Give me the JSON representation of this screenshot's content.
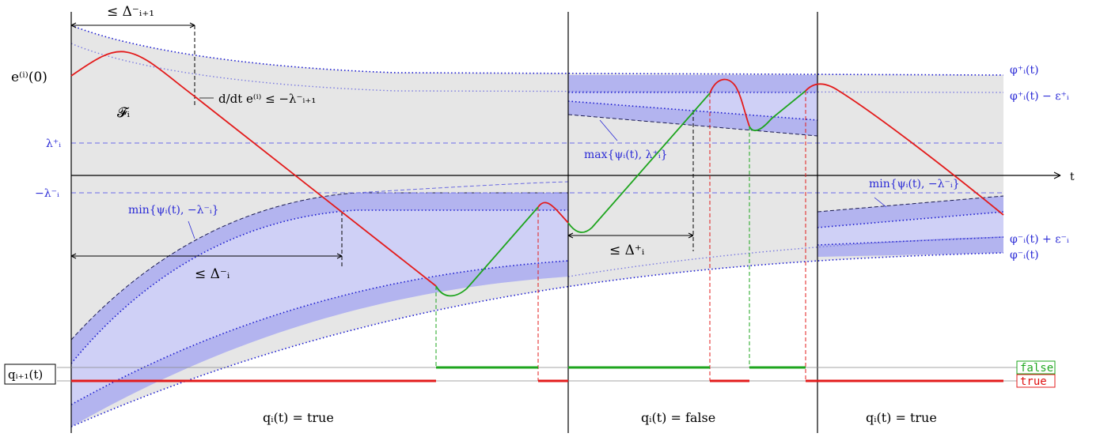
{
  "labels": {
    "delta_i1_minus": "≤ Δ⁻ᵢ₊₁",
    "e_i_0": "e⁽ⁱ⁾(0)",
    "derivative_bound": "d/dt e⁽ⁱ⁾ ≤ −λ⁻ᵢ₊₁",
    "feasible_set": "𝓕ᵢ",
    "lambda_plus": "λ⁺ᵢ",
    "minus_lambda_minus": "−λ⁻ᵢ",
    "min_psi": "min{ψᵢ(t), −λ⁻ᵢ}",
    "delta_i_minus": "≤ Δ⁻ᵢ",
    "max_psi": "max{ψᵢ(t), λ⁺ᵢ}",
    "delta_i_plus": "≤ Δ⁺ᵢ",
    "min_psi_right": "min{ψᵢ(t), −λ⁻ᵢ}",
    "t_axis": "t",
    "phi_plus": "φ⁺ᵢ(t)",
    "phi_plus_minus_eps": "φ⁺ᵢ(t) − ε⁺ᵢ",
    "phi_minus_plus_eps": "φ⁻ᵢ(t) + ε⁻ᵢ",
    "phi_minus": "φ⁻ᵢ(t)",
    "q_i1": "qᵢ₊₁(t)",
    "q_false": "false",
    "q_true": "true",
    "seg1": "qᵢ(t) = true",
    "seg2": "qᵢ(t) = false",
    "seg3": "qᵢ(t) = true"
  },
  "colors": {
    "gray_fill": "#e6e6e6",
    "light_blue": "#cfd0f6",
    "mid_blue": "#b3b4ef",
    "blue_line": "#1a1ad0",
    "red": "#e31b1b",
    "green": "#1ea51e"
  }
}
